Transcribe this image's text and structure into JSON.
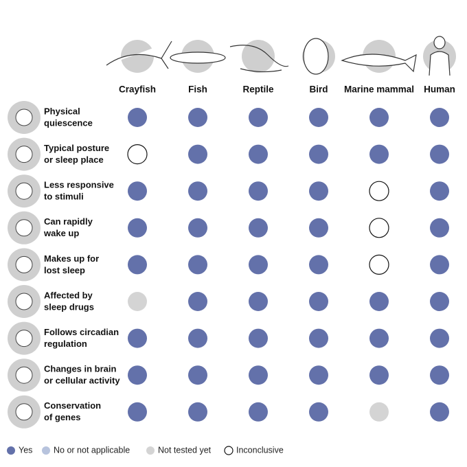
{
  "columns": [
    "Crayfish",
    "Fish",
    "Reptile",
    "Bird",
    "Marine mammal",
    "Human"
  ],
  "rows": [
    {
      "label": [
        "Physical",
        "quiescence"
      ],
      "cells": [
        "Yes",
        "Yes",
        "Yes",
        "Yes",
        "Yes",
        "Yes"
      ]
    },
    {
      "label": [
        "Typical posture",
        "or sleep place"
      ],
      "cells": [
        "Inconclusive",
        "Yes",
        "Yes",
        "Yes",
        "Yes",
        "Yes"
      ]
    },
    {
      "label": [
        "Less responsive",
        "to stimuli"
      ],
      "cells": [
        "Yes",
        "Yes",
        "Yes",
        "Yes",
        "Inconclusive",
        "Yes"
      ]
    },
    {
      "label": [
        "Can rapidly",
        "wake up"
      ],
      "cells": [
        "Yes",
        "Yes",
        "Yes",
        "Yes",
        "Inconclusive",
        "Yes"
      ]
    },
    {
      "label": [
        "Makes up for",
        "lost sleep"
      ],
      "cells": [
        "Yes",
        "Yes",
        "Yes",
        "Yes",
        "Inconclusive",
        "Yes"
      ]
    },
    {
      "label": [
        "Affected by",
        "sleep drugs"
      ],
      "cells": [
        "Not tested yet",
        "Yes",
        "Yes",
        "Yes",
        "Yes",
        "Yes"
      ]
    },
    {
      "label": [
        "Follows circadian",
        "regulation"
      ],
      "cells": [
        "Yes",
        "Yes",
        "Yes",
        "Yes",
        "Yes",
        "Yes"
      ]
    },
    {
      "label": [
        "Changes in brain",
        "or cellular activity"
      ],
      "cells": [
        "Yes",
        "Yes",
        "Yes",
        "Yes",
        "Yes",
        "Yes"
      ]
    },
    {
      "label": [
        "Conservation",
        "of genes"
      ],
      "cells": [
        "Yes",
        "Yes",
        "Yes",
        "Yes",
        "Not tested yet",
        "Yes"
      ]
    }
  ],
  "legend": [
    {
      "label": "Yes",
      "color": "#6371aa"
    },
    {
      "label": "No or not applicable",
      "color": "#b7c3dd"
    },
    {
      "label": "Not tested yet",
      "color": "#d4d4d4"
    },
    {
      "label": "Inconclusive",
      "color": "#ffffff"
    }
  ]
}
